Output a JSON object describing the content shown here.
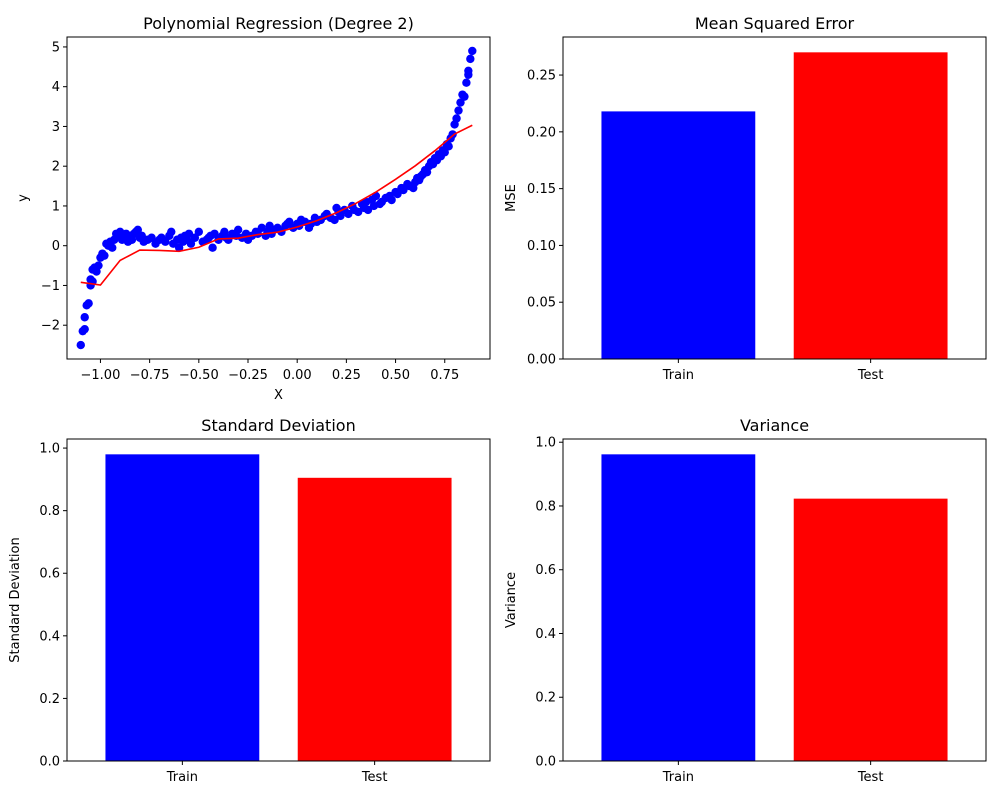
{
  "chart_data": [
    {
      "type": "scatter",
      "title": "Polynomial Regression (Degree 2)",
      "xlabel": "X",
      "ylabel": "y",
      "xlim": [
        -1.17,
        0.98
      ],
      "ylim": [
        -2.85,
        5.25
      ],
      "xticks": [
        "−1.00",
        "−0.75",
        "−0.50",
        "−0.25",
        "0.00",
        "0.25",
        "0.50",
        "0.75"
      ],
      "xtick_values": [
        -1.0,
        -0.75,
        -0.5,
        -0.25,
        0.0,
        0.25,
        0.5,
        0.75
      ],
      "yticks": [
        "−2",
        "−1",
        "0",
        "1",
        "2",
        "3",
        "4",
        "5"
      ],
      "ytick_values": [
        -2,
        -1,
        0,
        1,
        2,
        3,
        4,
        5
      ],
      "series": [
        {
          "kind": "points",
          "color": "#0000ff",
          "x": [
            -1.1,
            -1.09,
            -1.08,
            -1.08,
            -1.07,
            -1.06,
            -1.05,
            -1.05,
            -1.04,
            -1.04,
            -1.03,
            -1.02,
            -1.01,
            -1.0,
            -0.99,
            -0.98,
            -0.97,
            -0.96,
            -0.95,
            -0.94,
            -0.93,
            -0.92,
            -0.91,
            -0.9,
            -0.89,
            -0.88,
            -0.87,
            -0.86,
            -0.85,
            -0.84,
            -0.83,
            -0.82,
            -0.81,
            -0.8,
            -0.79,
            -0.78,
            -0.76,
            -0.74,
            -0.72,
            -0.7,
            -0.69,
            -0.67,
            -0.65,
            -0.64,
            -0.63,
            -0.61,
            -0.6,
            -0.59,
            -0.58,
            -0.57,
            -0.56,
            -0.55,
            -0.54,
            -0.52,
            -0.5,
            -0.48,
            -0.46,
            -0.45,
            -0.44,
            -0.43,
            -0.42,
            -0.4,
            -0.38,
            -0.37,
            -0.36,
            -0.35,
            -0.33,
            -0.31,
            -0.3,
            -0.28,
            -0.26,
            -0.25,
            -0.23,
            -0.21,
            -0.2,
            -0.18,
            -0.16,
            -0.15,
            -0.14,
            -0.13,
            -0.12,
            -0.1,
            -0.08,
            -0.06,
            -0.05,
            -0.04,
            -0.02,
            0.0,
            0.01,
            0.02,
            0.04,
            0.06,
            0.07,
            0.09,
            0.1,
            0.12,
            0.14,
            0.15,
            0.17,
            0.19,
            0.2,
            0.21,
            0.22,
            0.24,
            0.26,
            0.28,
            0.29,
            0.31,
            0.33,
            0.34,
            0.35,
            0.36,
            0.38,
            0.39,
            0.4,
            0.42,
            0.43,
            0.45,
            0.47,
            0.48,
            0.5,
            0.51,
            0.53,
            0.54,
            0.56,
            0.57,
            0.59,
            0.6,
            0.61,
            0.62,
            0.63,
            0.64,
            0.65,
            0.66,
            0.67,
            0.68,
            0.69,
            0.7,
            0.71,
            0.72,
            0.73,
            0.74,
            0.75,
            0.76,
            0.77,
            0.78,
            0.79,
            0.8,
            0.81,
            0.82,
            0.83,
            0.84,
            0.85,
            0.86,
            0.87,
            0.87,
            0.88,
            0.89
          ],
          "y": [
            -2.5,
            -2.15,
            -2.1,
            -1.8,
            -1.5,
            -1.45,
            -1.0,
            -0.85,
            -0.9,
            -0.6,
            -0.55,
            -0.65,
            -0.5,
            -0.3,
            -0.2,
            -0.25,
            0.05,
            0.0,
            0.1,
            -0.05,
            0.15,
            0.3,
            0.25,
            0.35,
            0.15,
            0.2,
            0.3,
            0.1,
            0.25,
            0.15,
            0.3,
            0.35,
            0.4,
            0.2,
            0.25,
            0.1,
            0.15,
            0.2,
            0.05,
            0.15,
            0.2,
            0.1,
            0.25,
            0.35,
            0.05,
            0.15,
            -0.05,
            0.2,
            0.1,
            0.25,
            0.15,
            0.3,
            0.05,
            0.2,
            0.35,
            0.1,
            0.15,
            0.2,
            0.25,
            -0.05,
            0.3,
            0.15,
            0.25,
            0.35,
            0.2,
            0.15,
            0.3,
            0.25,
            0.4,
            0.2,
            0.3,
            0.15,
            0.25,
            0.35,
            0.3,
            0.45,
            0.25,
            0.35,
            0.5,
            0.3,
            0.4,
            0.45,
            0.35,
            0.5,
            0.55,
            0.6,
            0.45,
            0.55,
            0.5,
            0.65,
            0.6,
            0.45,
            0.55,
            0.7,
            0.6,
            0.65,
            0.75,
            0.8,
            0.7,
            0.65,
            0.95,
            0.85,
            0.75,
            0.9,
            0.8,
            1.0,
            0.9,
            0.85,
            1.05,
            0.95,
            1.1,
            0.9,
            1.15,
            1.0,
            1.25,
            1.05,
            1.1,
            1.2,
            1.25,
            1.15,
            1.35,
            1.3,
            1.45,
            1.4,
            1.55,
            1.5,
            1.45,
            1.6,
            1.7,
            1.65,
            1.75,
            1.8,
            1.9,
            1.85,
            2.0,
            2.1,
            2.05,
            2.2,
            2.15,
            2.3,
            2.25,
            2.4,
            2.35,
            2.55,
            2.5,
            2.7,
            2.8,
            3.05,
            3.2,
            3.4,
            3.6,
            3.8,
            3.75,
            4.1,
            4.3,
            4.4,
            4.7,
            4.9
          ]
        },
        {
          "kind": "curve",
          "color": "#ff0000",
          "x": [
            -1.1,
            -1.0,
            -0.9,
            -0.8,
            -0.7,
            -0.6,
            -0.5,
            -0.4,
            -0.3,
            -0.2,
            -0.1,
            0.0,
            0.1,
            0.2,
            0.3,
            0.4,
            0.5,
            0.6,
            0.7,
            0.8,
            0.89
          ],
          "y": [
            -0.92,
            -0.99,
            -0.37,
            -0.11,
            -0.12,
            -0.14,
            -0.04,
            0.17,
            0.19,
            0.28,
            0.34,
            0.47,
            0.63,
            0.83,
            1.07,
            1.35,
            1.67,
            2.01,
            2.39,
            2.81,
            3.03
          ]
        }
      ]
    },
    {
      "type": "bar",
      "title": "Mean Squared Error",
      "xlabel": "",
      "ylabel": "MSE",
      "categories": [
        "Train",
        "Test"
      ],
      "values": [
        0.218,
        0.27
      ],
      "colors": [
        "#0000ff",
        "#ff0000"
      ],
      "ylim": [
        0,
        0.2835
      ],
      "yticks": [
        "0.00",
        "0.05",
        "0.10",
        "0.15",
        "0.20",
        "0.25"
      ],
      "ytick_values": [
        0,
        0.05,
        0.1,
        0.15,
        0.2,
        0.25
      ]
    },
    {
      "type": "bar",
      "title": "Standard Deviation",
      "xlabel": "",
      "ylabel": "Standard Deviation",
      "categories": [
        "Train",
        "Test"
      ],
      "values": [
        0.98,
        0.905
      ],
      "colors": [
        "#0000ff",
        "#ff0000"
      ],
      "ylim": [
        0,
        1.029
      ],
      "yticks": [
        "0.0",
        "0.2",
        "0.4",
        "0.6",
        "0.8",
        "1.0"
      ],
      "ytick_values": [
        0,
        0.2,
        0.4,
        0.6,
        0.8,
        1.0
      ]
    },
    {
      "type": "bar",
      "title": "Variance",
      "xlabel": "",
      "ylabel": "Variance",
      "categories": [
        "Train",
        "Test"
      ],
      "values": [
        0.962,
        0.823
      ],
      "colors": [
        "#0000ff",
        "#ff0000"
      ],
      "ylim": [
        0,
        1.0101
      ],
      "yticks": [
        "0.0",
        "0.2",
        "0.4",
        "0.6",
        "0.8",
        "1.0"
      ],
      "ytick_values": [
        0,
        0.2,
        0.4,
        0.6,
        0.8,
        1.0
      ]
    }
  ]
}
